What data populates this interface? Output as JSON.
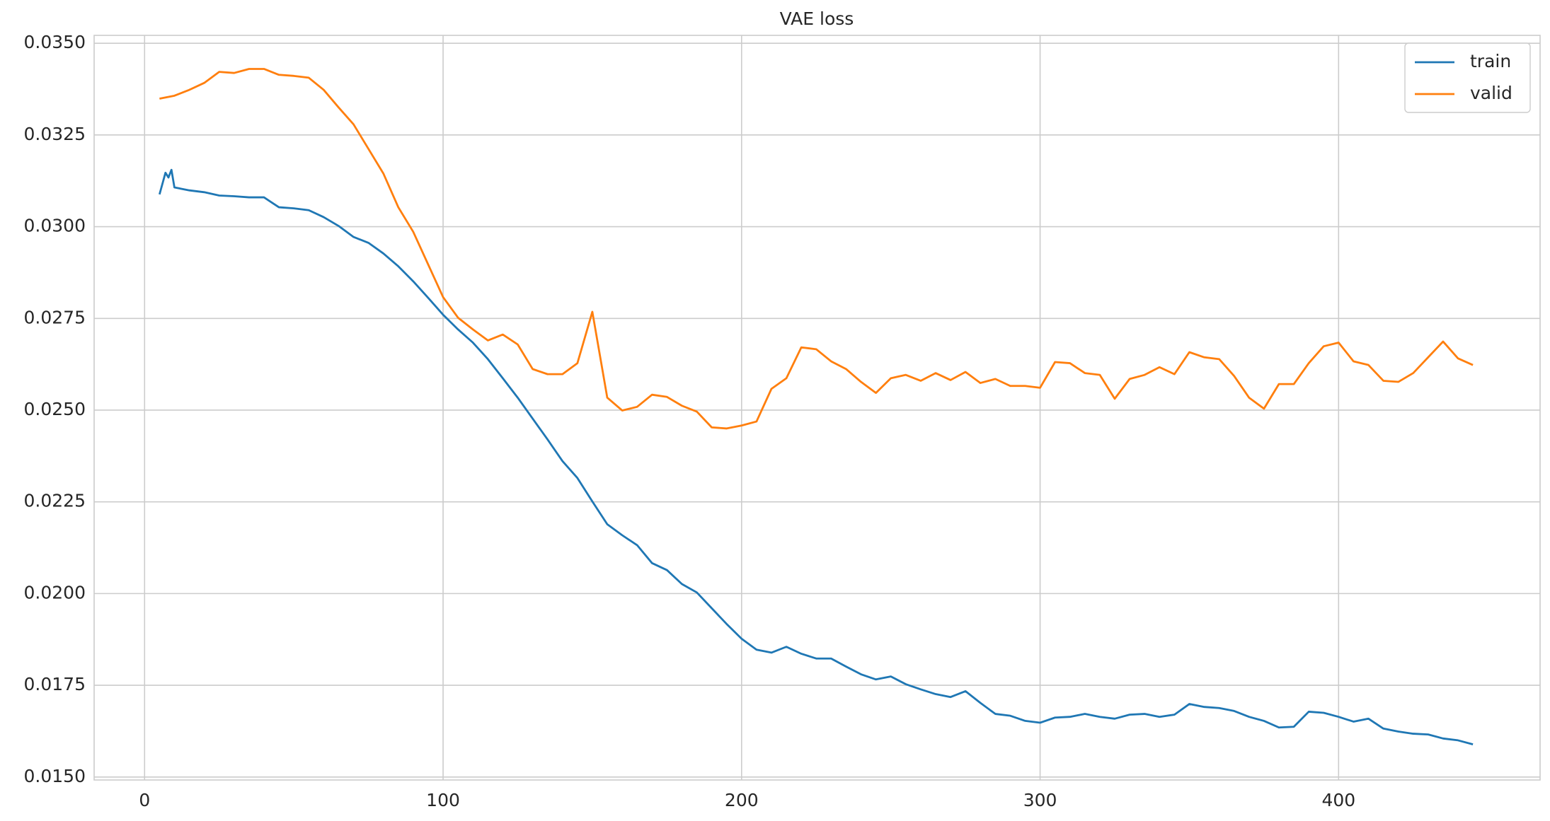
{
  "chart_data": {
    "type": "line",
    "title": "VAE loss",
    "series": [
      {
        "name": "train",
        "color": "#1f77b4",
        "x": [
          5,
          7,
          8,
          9,
          10,
          15,
          20,
          25,
          30,
          35,
          40,
          45,
          50,
          55,
          60,
          65,
          70,
          75,
          80,
          85,
          90,
          95,
          100,
          105,
          110,
          115,
          120,
          125,
          130,
          135,
          140,
          145,
          150,
          155,
          160,
          165,
          170,
          175,
          180,
          185,
          190,
          195,
          200,
          205,
          210,
          215,
          220,
          225,
          230,
          235,
          240,
          245,
          250,
          255,
          260,
          265,
          270,
          275,
          280,
          285,
          290,
          295,
          300,
          305,
          310,
          315,
          320,
          325,
          330,
          335,
          340,
          345,
          350,
          355,
          360,
          365,
          370,
          375,
          380,
          385,
          390,
          395,
          400,
          405,
          410,
          415,
          420,
          425,
          430,
          435,
          440,
          445
        ],
        "values": [
          0.03088,
          0.03147,
          0.03134,
          0.03155,
          0.03107,
          0.03099,
          0.03094,
          0.03085,
          0.03083,
          0.0308,
          0.0308,
          0.03053,
          0.0305,
          0.03045,
          0.03026,
          0.03002,
          0.02972,
          0.02956,
          0.02927,
          0.02892,
          0.02851,
          0.02806,
          0.0276,
          0.0272,
          0.02684,
          0.02639,
          0.02587,
          0.02534,
          0.02477,
          0.0242,
          0.02361,
          0.02315,
          0.02251,
          0.02189,
          0.02159,
          0.02132,
          0.02083,
          0.02064,
          0.02026,
          0.02003,
          0.0196,
          0.01917,
          0.01877,
          0.01847,
          0.01839,
          0.01855,
          0.01836,
          0.01823,
          0.01823,
          0.01801,
          0.0178,
          0.01766,
          0.01774,
          0.01753,
          0.01739,
          0.01726,
          0.01718,
          0.01734,
          0.01702,
          0.01672,
          0.01667,
          0.01653,
          0.01648,
          0.01662,
          0.01664,
          0.01672,
          0.01664,
          0.01659,
          0.0167,
          0.01672,
          0.01664,
          0.0167,
          0.01699,
          0.01691,
          0.01688,
          0.0168,
          0.01664,
          0.01653,
          0.01635,
          0.01637,
          0.01678,
          0.01675,
          0.01664,
          0.01651,
          0.01659,
          0.01632,
          0.01624,
          0.01618,
          0.01616,
          0.01605,
          0.016,
          0.01589
        ]
      },
      {
        "name": "valid",
        "color": "#ff7f0e",
        "x": [
          5,
          10,
          15,
          20,
          25,
          30,
          35,
          40,
          45,
          50,
          55,
          60,
          65,
          70,
          75,
          80,
          85,
          90,
          95,
          100,
          105,
          110,
          115,
          120,
          125,
          130,
          135,
          140,
          145,
          150,
          155,
          160,
          165,
          170,
          175,
          180,
          185,
          190,
          195,
          200,
          205,
          210,
          215,
          220,
          225,
          230,
          235,
          240,
          245,
          250,
          255,
          260,
          265,
          270,
          275,
          280,
          285,
          290,
          295,
          300,
          305,
          310,
          315,
          320,
          325,
          330,
          335,
          340,
          345,
          350,
          355,
          360,
          365,
          370,
          375,
          380,
          385,
          390,
          395,
          400,
          405,
          410,
          415,
          420,
          425,
          430,
          435,
          440,
          445
        ],
        "values": [
          0.03349,
          0.03357,
          0.03373,
          0.03392,
          0.03422,
          0.03419,
          0.0343,
          0.0343,
          0.03414,
          0.03411,
          0.03406,
          0.03373,
          0.03325,
          0.03279,
          0.03212,
          0.03145,
          0.03053,
          0.02986,
          0.02897,
          0.02808,
          0.02752,
          0.0272,
          0.0269,
          0.02706,
          0.02679,
          0.02612,
          0.02598,
          0.02598,
          0.02628,
          0.02768,
          0.02534,
          0.02499,
          0.02509,
          0.02542,
          0.02536,
          0.02512,
          0.02496,
          0.02453,
          0.0245,
          0.02458,
          0.02469,
          0.02558,
          0.02587,
          0.02671,
          0.02666,
          0.02633,
          0.02612,
          0.02577,
          0.02547,
          0.02587,
          0.02596,
          0.0258,
          0.02601,
          0.02582,
          0.02604,
          0.02574,
          0.02585,
          0.02566,
          0.02566,
          0.02561,
          0.02631,
          0.02628,
          0.02601,
          0.02596,
          0.02531,
          0.02585,
          0.02596,
          0.02617,
          0.02598,
          0.02658,
          0.02644,
          0.02639,
          0.02593,
          0.02534,
          0.02504,
          0.02571,
          0.02571,
          0.02628,
          0.02674,
          0.02684,
          0.02633,
          0.02623,
          0.0258,
          0.02577,
          0.02601,
          0.02644,
          0.02687,
          0.02641,
          0.02623
        ]
      }
    ],
    "xlim": [
      -16.9,
      467.5
    ],
    "xticks": [
      0,
      100,
      200,
      300,
      400
    ],
    "ylim": [
      0.014919,
      0.035215
    ],
    "yticks": [
      {
        "value": 0.015,
        "label": "0.0150"
      },
      {
        "value": 0.0175,
        "label": "0.0175"
      },
      {
        "value": 0.02,
        "label": "0.0200"
      },
      {
        "value": 0.0225,
        "label": "0.0225"
      },
      {
        "value": 0.025,
        "label": "0.0250"
      },
      {
        "value": 0.0275,
        "label": "0.0275"
      },
      {
        "value": 0.03,
        "label": "0.0300"
      },
      {
        "value": 0.0325,
        "label": "0.0325"
      },
      {
        "value": 0.035,
        "label": "0.0350"
      }
    ],
    "grid": true,
    "legend": "upper right"
  }
}
